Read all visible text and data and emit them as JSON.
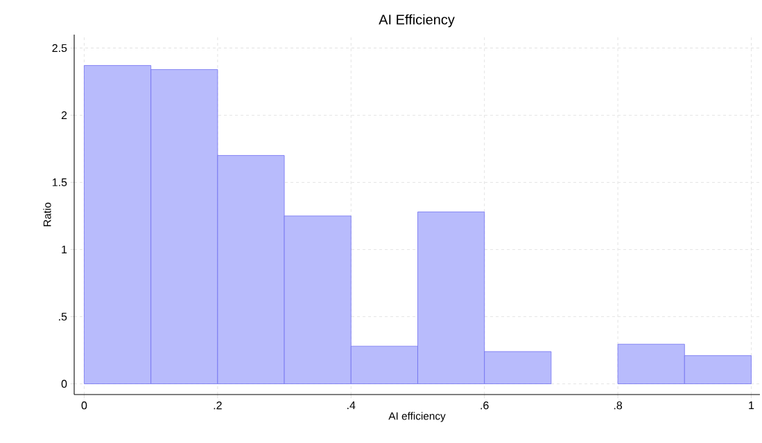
{
  "chart_data": {
    "type": "histogram",
    "title": "AI Efficiency",
    "xlabel": "AI efficiency",
    "ylabel": "Ratio",
    "bins": [
      0,
      0.1,
      0.2,
      0.3,
      0.4,
      0.5,
      0.6,
      0.7,
      0.8,
      0.9,
      1
    ],
    "values": [
      2.37,
      2.34,
      1.7,
      1.25,
      0.28,
      1.28,
      0.24,
      0,
      0.295,
      0.21
    ],
    "color": "#b8bbfc",
    "xlim": [
      -0.015,
      1.013
    ],
    "ylim": [
      -0.08,
      2.6
    ],
    "xticks": [
      0,
      {
        "value": 0.2,
        "label": ".2"
      },
      {
        "value": 0.4,
        "label": ".4"
      },
      {
        "value": 0.6,
        "label": ".6"
      },
      {
        "value": 0.8,
        "label": ".8"
      },
      1
    ],
    "yticks": [
      0,
      {
        "value": 0.5,
        "label": ".5"
      },
      1,
      {
        "value": 1.5,
        "label": "1.5"
      },
      2,
      {
        "value": 2.5,
        "label": "2.5"
      }
    ],
    "grid": true
  }
}
